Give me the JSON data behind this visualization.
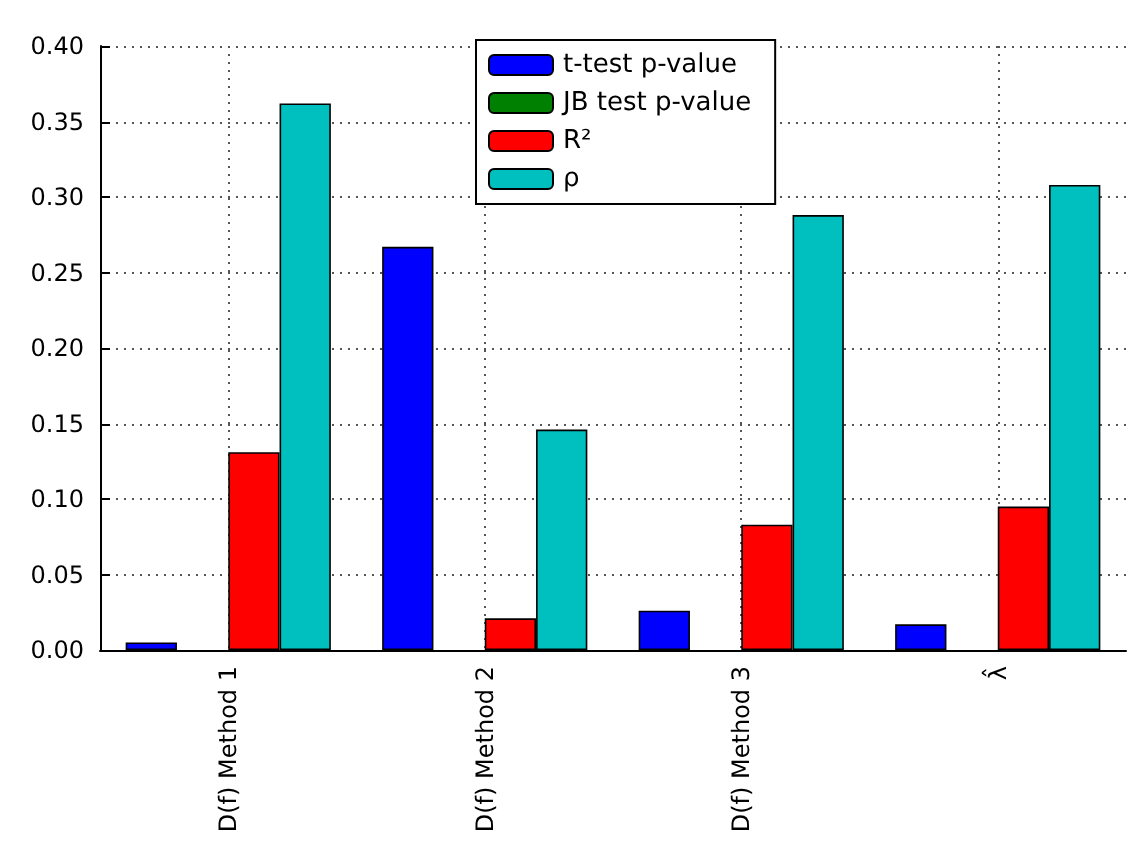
{
  "chart_data": {
    "type": "bar",
    "categories": [
      "D(f) Method 1",
      "D(f) Method 2",
      "D(f) Method 3",
      "λ̂"
    ],
    "series": [
      {
        "name": "t-test p-value",
        "color": "#0000ff",
        "values": [
          0.005,
          0.267,
          0.026,
          0.017
        ]
      },
      {
        "name": "JB test p-value",
        "color": "#008000",
        "values": [
          null,
          null,
          null,
          null
        ]
      },
      {
        "name": "R²",
        "color": "#ff0000",
        "values": [
          0.131,
          0.021,
          0.083,
          0.095
        ]
      },
      {
        "name": "ρ",
        "color": "#00bfbf",
        "values": [
          0.362,
          0.146,
          0.288,
          0.308
        ]
      }
    ],
    "ylim": [
      0,
      0.4
    ],
    "yticks": [
      {
        "value": 0,
        "label": "0.00"
      },
      0.05,
      {
        "value": 0.1,
        "label": "0.10"
      },
      0.15,
      {
        "value": 0.2,
        "label": "0.20"
      },
      0.25,
      {
        "value": 0.3,
        "label": "0.30"
      },
      0.35,
      {
        "value": 0.4,
        "label": "0.40"
      }
    ],
    "grid": true,
    "legend": "top"
  }
}
